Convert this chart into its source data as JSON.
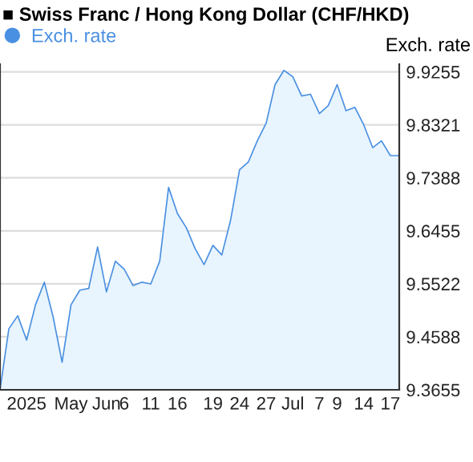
{
  "chart_data": {
    "type": "area",
    "title": "■ Swiss Franc / Hong Kong Dollar (CHF/HKD)",
    "ylabel": "Exch. rate",
    "categories": [
      null,
      null,
      null,
      "2025",
      null,
      null,
      null,
      null,
      "May",
      null,
      null,
      null,
      "Jun",
      null,
      "6",
      null,
      null,
      "11",
      null,
      null,
      "16",
      null,
      null,
      null,
      "19",
      null,
      null,
      "24",
      null,
      null,
      "27",
      null,
      null,
      "Jul",
      null,
      null,
      "7",
      null,
      "9",
      null,
      null,
      "14",
      null,
      null,
      "17",
      null
    ],
    "series": [
      {
        "name": "Exch. rate",
        "color": "#4a90e2",
        "values": [
          9.3655,
          9.473,
          9.496,
          9.453,
          9.515,
          9.555,
          9.493,
          9.414,
          9.515,
          9.541,
          9.544,
          9.617,
          9.538,
          9.592,
          9.578,
          9.549,
          9.555,
          9.552,
          9.592,
          9.722,
          9.676,
          9.651,
          9.614,
          9.586,
          9.62,
          9.603,
          9.665,
          9.753,
          9.767,
          9.804,
          9.835,
          9.903,
          9.928,
          9.917,
          9.883,
          9.886,
          9.852,
          9.866,
          9.903,
          9.857,
          9.863,
          9.832,
          9.792,
          9.804,
          9.778,
          9.778
        ]
      }
    ],
    "ylim": [
      9.3655,
      9.939
    ],
    "yticks": [
      9.3655,
      9.4588,
      9.5522,
      9.6455,
      9.7388,
      9.8321,
      9.9255
    ],
    "grid": "y",
    "legend": "top left"
  }
}
